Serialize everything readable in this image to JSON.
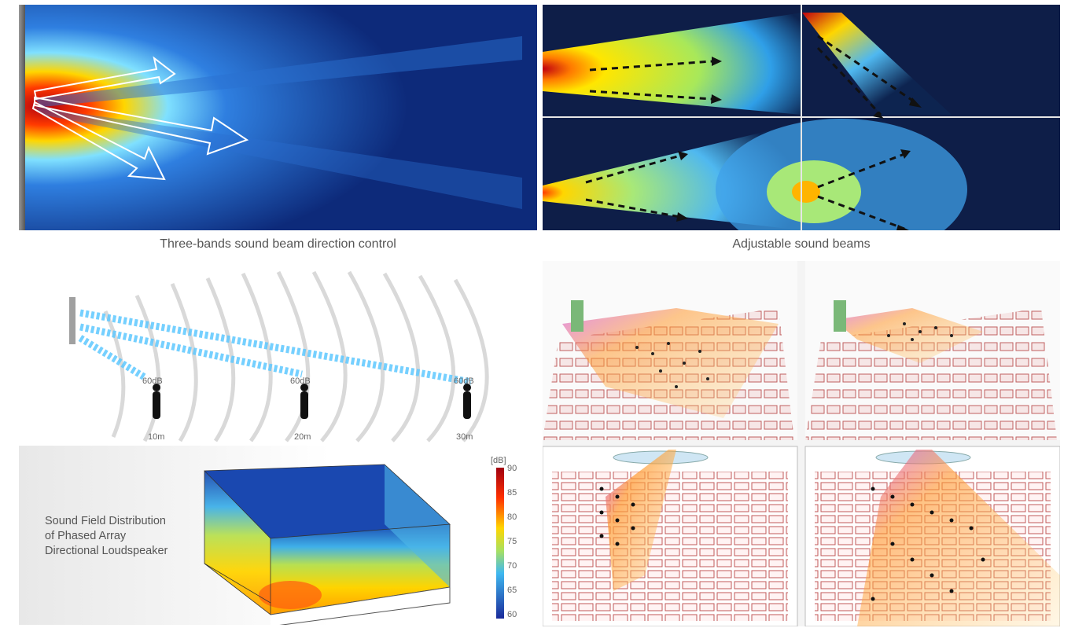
{
  "captions": {
    "left_top": "Three-bands sound beam direction control",
    "right_top": "Adjustable sound beams"
  },
  "distance_markers": [
    {
      "level": "60dB",
      "distance": "10m"
    },
    {
      "level": "60dB",
      "distance": "20m"
    },
    {
      "level": "60dB",
      "distance": "30m"
    }
  ],
  "sound_field": {
    "label_lines": [
      "Sound Field Distribution",
      "of Phased Array",
      "Directional Loudspeaker"
    ],
    "colorbar_unit": "[dB]",
    "colorbar_ticks": [
      "90",
      "85",
      "80",
      "75",
      "70",
      "65",
      "60"
    ]
  },
  "colors": {
    "deep_blue": "#0d2a7a",
    "hot_red": "#c8102e",
    "beam_cyan": "#5ec8ff"
  }
}
